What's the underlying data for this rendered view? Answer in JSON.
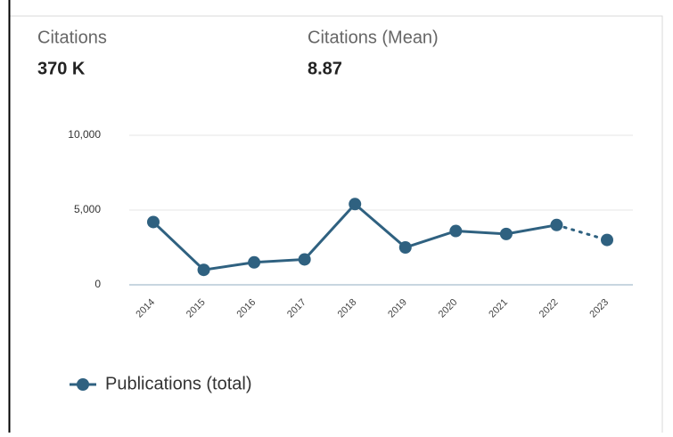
{
  "kpis": [
    {
      "label": "Citations",
      "value": "370 K"
    },
    {
      "label": "Citations (Mean)",
      "value": "8.87"
    }
  ],
  "chart_data": {
    "type": "line",
    "categories": [
      "2014",
      "2015",
      "2016",
      "2017",
      "2018",
      "2019",
      "2020",
      "2021",
      "2022",
      "2023"
    ],
    "series": [
      {
        "name": "Publications (total)",
        "color": "#2f6180",
        "values": [
          4200,
          1000,
          1500,
          1700,
          5400,
          2500,
          3600,
          3400,
          4000,
          3000
        ]
      }
    ],
    "dotted_last_segment": true,
    "ylim": [
      0,
      10000
    ],
    "yticks": [
      0,
      {
        "value": 5000,
        "label": "5,000"
      },
      {
        "value": 10000,
        "label": "10,000"
      }
    ],
    "grid": true,
    "legend": "bottom-left"
  }
}
